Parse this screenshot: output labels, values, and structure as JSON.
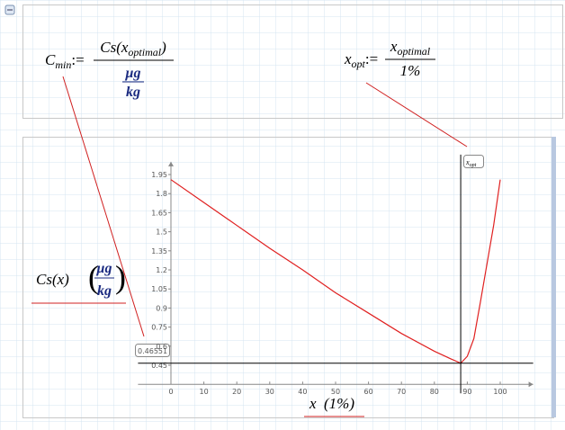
{
  "worksheet": {
    "cmin": {
      "lhs": "C",
      "lhs_sub": "min",
      "assign": ":=",
      "num": "Cs",
      "num_open": "(x",
      "num_sub": "optimal",
      "num_close": ")",
      "den_top": "μg",
      "den_bottom": "kg"
    },
    "xopt": {
      "lhs": "x",
      "lhs_sub": "opt",
      "assign": ":=",
      "num": "x",
      "num_sub": "optimal",
      "den": "1%"
    }
  },
  "chart_data": {
    "type": "line",
    "ylabel": "Cs(x)",
    "yunit_top": "μg",
    "yunit_bottom": "kg",
    "xlabel": "x",
    "xunit": "(1%)",
    "x": [
      0,
      10,
      20,
      30,
      40,
      50,
      60,
      70,
      80,
      85,
      88,
      90,
      92,
      94,
      96,
      98,
      100
    ],
    "series": [
      {
        "color": "#e02020",
        "values": [
          1.91,
          1.73,
          1.55,
          1.37,
          1.2,
          1.02,
          0.86,
          0.7,
          0.56,
          0.5,
          0.466,
          0.52,
          0.66,
          0.95,
          1.25,
          1.55,
          1.91
        ]
      }
    ],
    "xlim": [
      -10,
      110
    ],
    "ylim": [
      0.3,
      2.05
    ],
    "xticks": [
      0,
      10,
      20,
      30,
      40,
      50,
      60,
      70,
      80,
      90,
      100
    ],
    "yticks": [
      0.45,
      0.6,
      0.75,
      0.9,
      1.05,
      1.2,
      1.35,
      1.5,
      1.65,
      1.8,
      1.95
    ],
    "x_marker": {
      "value": 88,
      "label": "x",
      "label_sub": "opt"
    },
    "y_marker": 0.46551
  }
}
